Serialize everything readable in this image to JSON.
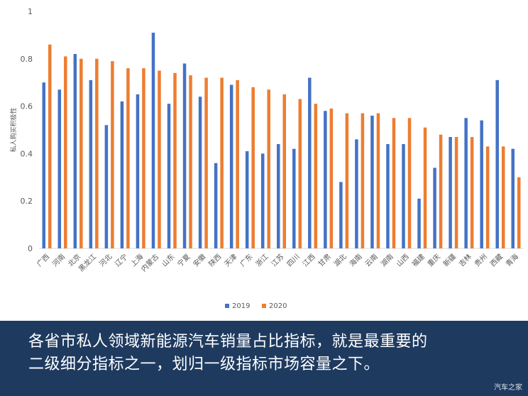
{
  "chart_data": {
    "type": "bar",
    "ylabel": "私人购买积极性",
    "ylim": [
      0,
      1
    ],
    "yticks": [
      "0",
      "0.2",
      "0.4",
      "0.6",
      "0.8",
      "1"
    ],
    "legend_position": "bottom",
    "categories": [
      "广西",
      "河南",
      "北京",
      "黑龙江",
      "河北",
      "辽宁",
      "上海",
      "内蒙古",
      "山东",
      "宁夏",
      "安徽",
      "陕西",
      "天津",
      "广东",
      "浙江",
      "江苏",
      "四川",
      "江西",
      "甘肃",
      "湖北",
      "海南",
      "云南",
      "湖南",
      "山西",
      "福建",
      "重庆",
      "新疆",
      "吉林",
      "贵州",
      "西藏",
      "青海"
    ],
    "series": [
      {
        "name": "2019",
        "color": "#4472c4",
        "values": [
          0.7,
          0.67,
          0.82,
          0.71,
          0.52,
          0.62,
          0.65,
          0.91,
          0.61,
          0.78,
          0.64,
          0.36,
          0.69,
          0.41,
          0.4,
          0.44,
          0.42,
          0.72,
          0.58,
          0.28,
          0.46,
          0.56,
          0.44,
          0.44,
          0.21,
          0.34,
          0.47,
          0.55,
          0.54,
          0.71,
          0.42
        ]
      },
      {
        "name": "2020",
        "color": "#ed7d31",
        "values": [
          0.86,
          0.81,
          0.8,
          0.8,
          0.79,
          0.76,
          0.76,
          0.75,
          0.74,
          0.73,
          0.72,
          0.72,
          0.71,
          0.68,
          0.67,
          0.65,
          0.63,
          0.61,
          0.59,
          0.57,
          0.57,
          0.57,
          0.55,
          0.55,
          0.51,
          0.48,
          0.47,
          0.47,
          0.43,
          0.43,
          0.3
        ]
      }
    ]
  },
  "caption": {
    "line1": "各省市私人领域新能源汽车销量占比指标，就是最重要的",
    "line2": "二级细分指标之一，划归一级指标市场容量之下。"
  },
  "watermark": "汽车之家"
}
